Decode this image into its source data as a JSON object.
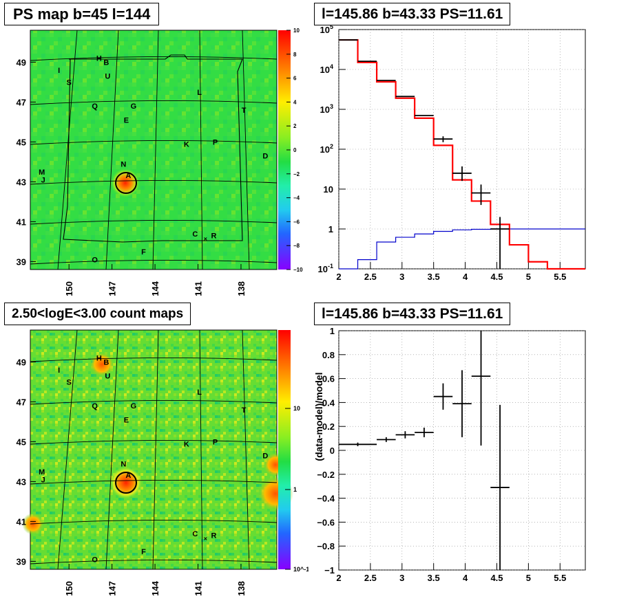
{
  "panels": {
    "top_left_title": "PS map b=45 l=144",
    "top_right_title": "l=145.86 b=43.33 PS=11.61",
    "bottom_left_title": "2.50<logE<3.00 count maps",
    "bottom_right_title": "l=145.86 b=43.33 PS=11.61"
  },
  "colors": {
    "map_background": "#33dd33",
    "data": "#000000",
    "model": "#ff0000",
    "background_model": "#0000cc",
    "grid": "#000000"
  },
  "chart_data": [
    {
      "type": "heatmap",
      "title": "PS map b=45 l=144",
      "x_ticks": [
        "150",
        "147",
        "144",
        "141",
        "138"
      ],
      "y_ticks": [
        "39",
        "41",
        "43",
        "45",
        "47",
        "49"
      ],
      "colorbar_ticks": [
        "10",
        "8",
        "6",
        "4",
        "2",
        "0",
        "−2",
        "−4",
        "−6",
        "−8",
        "−10"
      ],
      "colorbar_range": [
        -10,
        10
      ],
      "sources": [
        {
          "label": "H",
          "l": 147.9,
          "b": 49.2
        },
        {
          "label": "B",
          "l": 147.4,
          "b": 49.0
        },
        {
          "label": "U",
          "l": 147.3,
          "b": 48.3
        },
        {
          "label": "I",
          "l": 150.7,
          "b": 48.6
        },
        {
          "label": "S",
          "l": 150.0,
          "b": 48.0
        },
        {
          "label": "L",
          "l": 140.9,
          "b": 47.5
        },
        {
          "label": "Q",
          "l": 148.2,
          "b": 46.8
        },
        {
          "label": "G",
          "l": 145.5,
          "b": 46.8
        },
        {
          "label": "T",
          "l": 137.8,
          "b": 46.6
        },
        {
          "label": "E",
          "l": 146.0,
          "b": 46.1
        },
        {
          "label": "K",
          "l": 141.8,
          "b": 44.9
        },
        {
          "label": "P",
          "l": 139.8,
          "b": 45.0
        },
        {
          "label": "D",
          "l": 136.3,
          "b": 44.3
        },
        {
          "label": "N",
          "l": 146.2,
          "b": 43.9
        },
        {
          "label": "M",
          "l": 151.9,
          "b": 43.5
        },
        {
          "label": "J",
          "l": 151.8,
          "b": 43.1
        },
        {
          "label": "A",
          "l": 145.86,
          "b": 43.33
        },
        {
          "label": "C",
          "l": 141.2,
          "b": 40.4
        },
        {
          "label": "R",
          "l": 139.9,
          "b": 40.3
        },
        {
          "label": "F",
          "l": 144.8,
          "b": 39.5
        },
        {
          "label": "O",
          "l": 148.2,
          "b": 39.1
        }
      ]
    },
    {
      "type": "line",
      "title": "l=145.86 b=43.33 PS=11.61",
      "yscale": "log",
      "xlim": [
        2,
        5.9
      ],
      "ylim": [
        0.1,
        100000
      ],
      "x_ticks": [
        "2",
        "2.5",
        "3",
        "3.5",
        "4",
        "4.5",
        "5",
        "5.5"
      ],
      "y_ticks": [
        "10^-1",
        "1",
        "10",
        "10^2",
        "10^3",
        "10^4",
        "10^5"
      ],
      "bin_edges": [
        2.0,
        2.3,
        2.6,
        2.9,
        3.2,
        3.5,
        3.8,
        4.1,
        4.4,
        4.7,
        5.0,
        5.3,
        5.6,
        5.9
      ],
      "series": [
        {
          "kind": "data",
          "points": [
            {
              "x": 2.15,
              "y": 55000,
              "ylo": 55000,
              "yhi": 55000
            },
            {
              "x": 2.45,
              "y": 16000,
              "ylo": 16000,
              "yhi": 16000
            },
            {
              "x": 2.75,
              "y": 5300,
              "ylo": 5300,
              "yhi": 5300
            },
            {
              "x": 3.05,
              "y": 2100,
              "ylo": 2100,
              "yhi": 2100
            },
            {
              "x": 3.35,
              "y": 700,
              "ylo": 700,
              "yhi": 700
            },
            {
              "x": 3.65,
              "y": 180,
              "ylo": 150,
              "yhi": 210
            },
            {
              "x": 3.95,
              "y": 25,
              "ylo": 16,
              "yhi": 37
            },
            {
              "x": 4.25,
              "y": 8,
              "ylo": 4,
              "yhi": 13
            },
            {
              "x": 4.55,
              "y": 1,
              "ylo": 0.1,
              "yhi": 2
            }
          ]
        },
        {
          "kind": "model",
          "values": [
            55000,
            15000,
            4900,
            1900,
            600,
            125,
            17,
            5,
            1.3,
            0.4,
            0.15,
            0.1,
            0.1
          ]
        },
        {
          "kind": "background",
          "values": [
            0.1,
            0.17,
            0.47,
            0.62,
            0.75,
            0.87,
            0.95,
            0.98,
            1.0,
            1.0,
            1.0,
            1.0,
            1.0
          ]
        }
      ]
    },
    {
      "type": "heatmap",
      "title": "2.50<logE<3.00 count maps",
      "x_ticks": [
        "150",
        "147",
        "144",
        "141",
        "138"
      ],
      "y_ticks": [
        "39",
        "41",
        "43",
        "45",
        "47",
        "49"
      ],
      "colorbar_ticks": [
        "10",
        "1",
        "10^-1"
      ],
      "colorbar_scale": "log"
    },
    {
      "type": "scatter",
      "title": "l=145.86 b=43.33 PS=11.61",
      "ylabel": "(data-model)/model",
      "xlim": [
        2,
        5.9
      ],
      "ylim": [
        -1,
        1
      ],
      "x_ticks": [
        "2",
        "2.5",
        "3",
        "3.5",
        "4",
        "4.5",
        "5",
        "5.5"
      ],
      "y_ticks": [
        "−1",
        "−0.8",
        "−0.6",
        "−0.4",
        "−0.2",
        "0",
        "0.2",
        "0.4",
        "0.6",
        "0.8",
        "1"
      ],
      "points": [
        {
          "x": 2.3,
          "xerr": 0.3,
          "y": 0.05,
          "yerr": 0.015
        },
        {
          "x": 2.75,
          "xerr": 0.15,
          "y": 0.09,
          "yerr": 0.02
        },
        {
          "x": 3.05,
          "xerr": 0.15,
          "y": 0.13,
          "yerr": 0.03
        },
        {
          "x": 3.35,
          "xerr": 0.15,
          "y": 0.15,
          "yerr": 0.04
        },
        {
          "x": 3.65,
          "xerr": 0.15,
          "y": 0.45,
          "yerr": 0.11
        },
        {
          "x": 3.95,
          "xerr": 0.15,
          "y": 0.39,
          "yerr": 0.28
        },
        {
          "x": 4.25,
          "xerr": 0.15,
          "y": 0.62,
          "yerr": 0.58
        },
        {
          "x": 4.55,
          "xerr": 0.15,
          "y": -0.31,
          "yerr": 0.69
        }
      ]
    }
  ]
}
